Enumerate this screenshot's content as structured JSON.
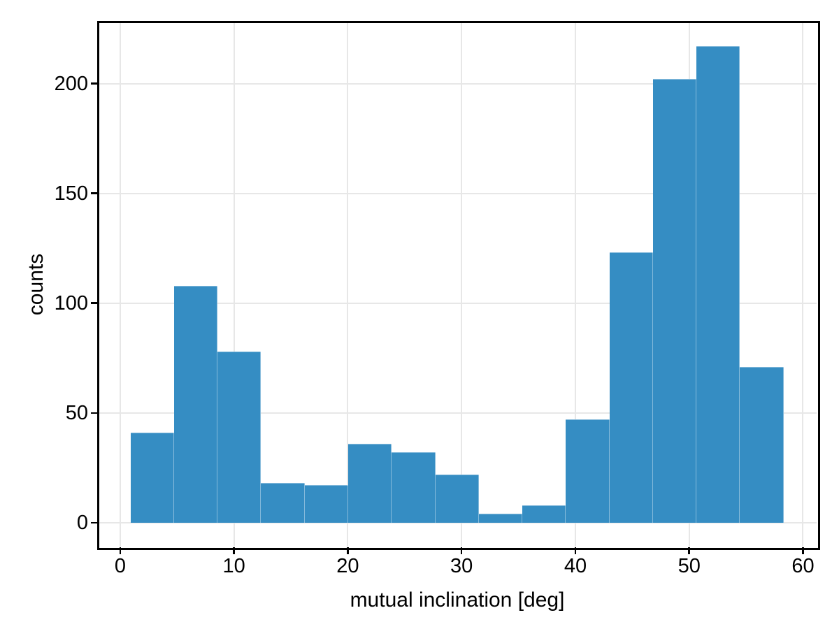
{
  "chart_data": {
    "type": "bar",
    "subtype": "histogram",
    "title": "",
    "xlabel": "mutual inclination [deg]",
    "ylabel": "counts",
    "bin_edges": [
      0.9,
      4.73,
      8.55,
      12.38,
      16.21,
      20.03,
      23.86,
      27.69,
      31.51,
      35.34,
      39.17,
      42.99,
      46.82,
      50.65,
      54.47,
      58.3
    ],
    "counts": [
      41,
      108,
      78,
      18,
      17,
      36,
      32,
      22,
      4,
      8,
      47,
      123,
      202,
      217,
      71
    ],
    "xtick_values": [
      0,
      10,
      20,
      30,
      40,
      50,
      60
    ],
    "xtick_labels": [
      "0",
      "10",
      "20",
      "30",
      "40",
      "50",
      "60"
    ],
    "ytick_values": [
      0,
      50,
      100,
      150,
      200
    ],
    "ytick_labels": [
      "0",
      "50",
      "100",
      "150",
      "200"
    ],
    "xlim": [
      -1.9,
      61.2
    ],
    "ylim": [
      -10.85,
      227.85
    ],
    "grid": true,
    "legend": false,
    "colors": {
      "bar_fill": "#358dc3",
      "bar_seam": "rgba(255,255,255,0.40)",
      "grid": "#e7e7e7",
      "axis": "#000000",
      "text": "#000000",
      "background": "#ffffff"
    }
  }
}
